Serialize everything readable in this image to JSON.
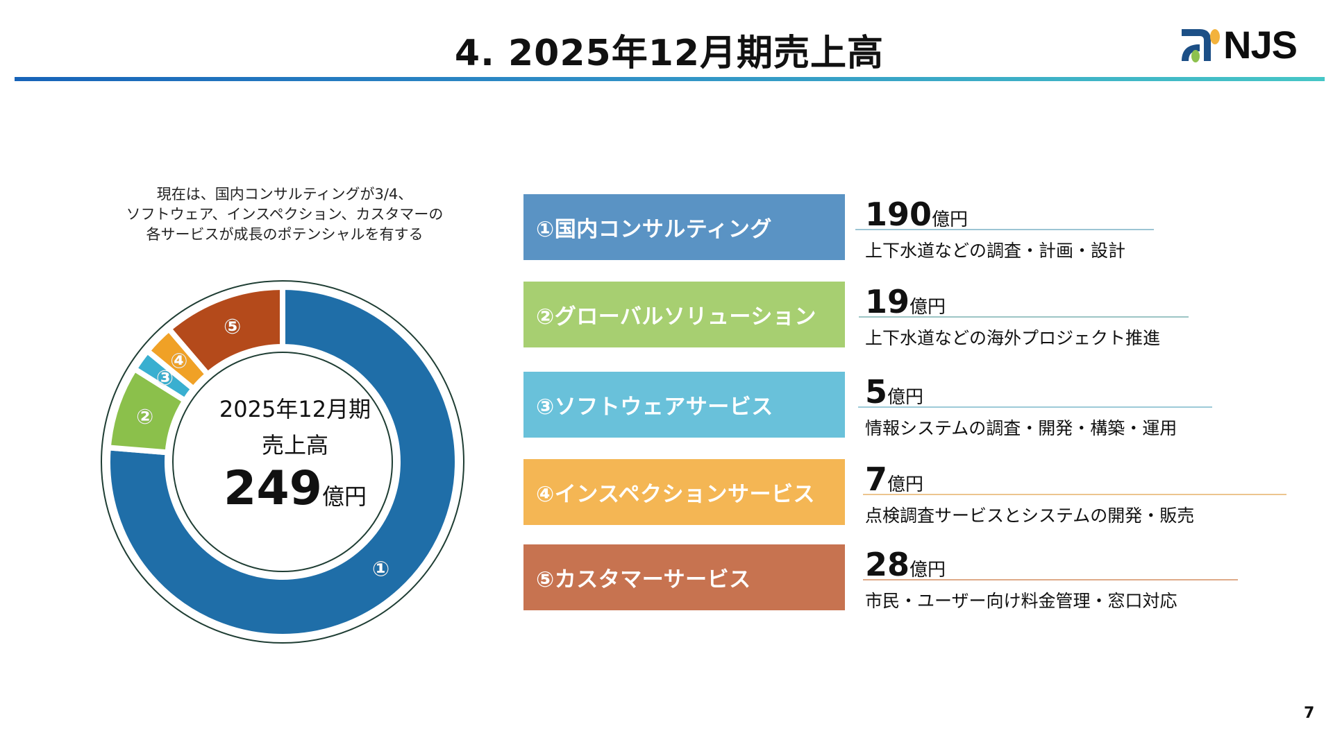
{
  "header": {
    "title": "4. 2025年12月期売上高",
    "logo_text": "NJS"
  },
  "caption": {
    "lines": [
      "現在は、国内コンサルティングが3/4、",
      "ソフトウェア、インスペクション、カスタマーの",
      "各サービスが成長のポテンシャルを有する"
    ]
  },
  "donut_center": {
    "period": "2025年12月期",
    "label": "売上高",
    "total": "249",
    "unit": "億円"
  },
  "chart_data": {
    "type": "pie",
    "variant": "donut",
    "categories": [
      "①",
      "②",
      "③",
      "④",
      "⑤"
    ],
    "values": [
      190,
      19,
      5,
      7,
      28
    ],
    "colors": [
      "#1f6ea8",
      "#8bc04b",
      "#39afd0",
      "#f0a126",
      "#b44a1b"
    ],
    "start": "top",
    "direction": "clockwise"
  },
  "segments": [
    {
      "label": "①国内コンサルティング",
      "value": "190",
      "unit": "億円",
      "desc": "上下水道などの調査・計画・設計",
      "box_color": "#5a93c4",
      "line_color": "#9cc4d4"
    },
    {
      "label": "②グローバルソリューション",
      "value": "19",
      "unit": "億円",
      "desc": "上下水道などの海外プロジェクト推進",
      "box_color": "#a7cf71",
      "line_color": "#9cc4c4"
    },
    {
      "label": "③ソフトウェアサービス",
      "value": "5",
      "unit": "億円",
      "desc": "情報システムの調査・開発・構築・運用",
      "box_color": "#69c1da",
      "line_color": "#9ccad8"
    },
    {
      "label": "④インスペクションサービス",
      "value": "7",
      "unit": "億円",
      "desc": "点検調査サービスとシステムの開発・販売",
      "box_color": "#f4b654",
      "line_color": "#ecc58e"
    },
    {
      "label": "⑤カスタマーサービス",
      "value": "28",
      "unit": "億円",
      "desc": "市民・ユーザー向け料金管理・窓口対応",
      "box_color": "#c77350",
      "line_color": "#deaa88"
    }
  ],
  "page_number": "7"
}
